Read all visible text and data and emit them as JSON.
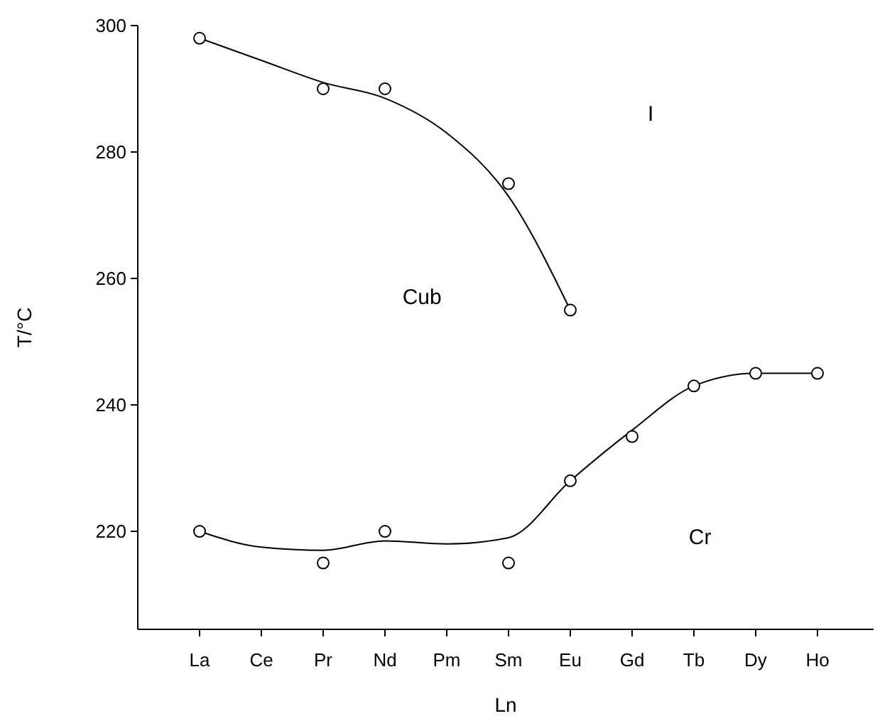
{
  "chart_data": {
    "type": "scatter",
    "xlabel": "Ln",
    "ylabel": "T/°C",
    "categories": [
      "La",
      "Ce",
      "Pr",
      "Nd",
      "Pm",
      "Sm",
      "Eu",
      "Gd",
      "Tb",
      "Dy",
      "Ho"
    ],
    "ylim": [
      204.5,
      300
    ],
    "yticks": [
      220,
      240,
      260,
      280,
      300
    ],
    "series": [
      {
        "type": "line",
        "color": "#000000",
        "marker": "none",
        "x": [
          "La",
          "Ce",
          "Pr",
          "Nd",
          "Pm",
          "Sm",
          "Eu"
        ],
        "values": [
          298,
          294.5,
          291,
          288.5,
          283,
          273,
          255
        ]
      },
      {
        "type": "line",
        "color": "#000000",
        "marker": "none",
        "x": [
          "La",
          "Ce",
          "Pr",
          "Nd",
          "Pm",
          "Sm",
          "Eu",
          "Gd",
          "Tb",
          "Dy",
          "Ho"
        ],
        "values": [
          220,
          217.5,
          217,
          218.5,
          218,
          219,
          228,
          236,
          243,
          245,
          245
        ]
      },
      {
        "color": "#000000",
        "marker": "circle",
        "x": [
          "La",
          "Pr",
          "Nd",
          "Sm",
          "Eu"
        ],
        "values": [
          298,
          290,
          290,
          275,
          255
        ]
      },
      {
        "color": "#000000",
        "marker": "circle",
        "x": [
          "La",
          "Pr",
          "Nd",
          "Sm",
          "Eu",
          "Gd",
          "Tb",
          "Dy",
          "Ho"
        ],
        "values": [
          220,
          215,
          220,
          215,
          228,
          235,
          243,
          245,
          245
        ]
      }
    ],
    "annotations": [
      "Cub",
      "I",
      "Cr"
    ]
  }
}
